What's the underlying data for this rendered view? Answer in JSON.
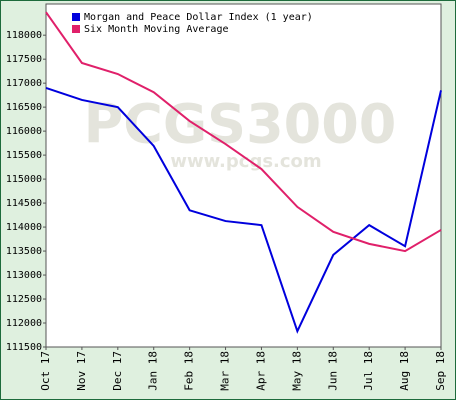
{
  "chart_data": {
    "type": "line",
    "categories": [
      "Oct 17",
      "Nov 17",
      "Dec 17",
      "Jan 18",
      "Feb 18",
      "Mar 18",
      "Apr 18",
      "May 18",
      "Jun 18",
      "Jul 18",
      "Aug 18",
      "Sep 18"
    ],
    "series": [
      {
        "name": "Morgan and Peace Dollar Index (1 year)",
        "color": "#0000dd",
        "values": [
          116900,
          116650,
          116500,
          115690,
          114350,
          114125,
          114040,
          111830,
          113420,
          114040,
          113600,
          116850
        ]
      },
      {
        "name": "Six Month Moving Average",
        "color": "#e0206a",
        "values": [
          118480,
          117420,
          117190,
          116810,
          116210,
          115730,
          115210,
          114420,
          113900,
          113650,
          113500,
          113940
        ]
      }
    ],
    "ylim": [
      111500,
      118650
    ],
    "yticks": [
      111500,
      112000,
      112500,
      113000,
      113500,
      114000,
      114500,
      115000,
      115500,
      116000,
      116500,
      117000,
      117500,
      118000
    ],
    "watermark": "PCGS3000",
    "watermark_url": "www.pcgs.com",
    "grid": false
  }
}
